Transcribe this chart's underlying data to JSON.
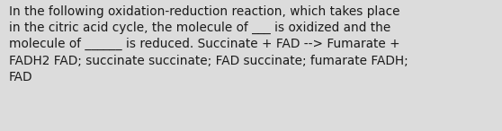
{
  "text": "In the following oxidation-reduction reaction, which takes place\nin the citric acid cycle, the molecule of ___ is oxidized and the\nmolecule of ______ is reduced. Succinate + FAD --> Fumarate +\nFADH2 FAD; succinate succinate; FAD succinate; fumarate FADH;\nFAD",
  "background_color": "#dcdcdc",
  "text_color": "#1a1a1a",
  "font_size": 9.8,
  "fig_width": 5.58,
  "fig_height": 1.46,
  "dpi": 100
}
